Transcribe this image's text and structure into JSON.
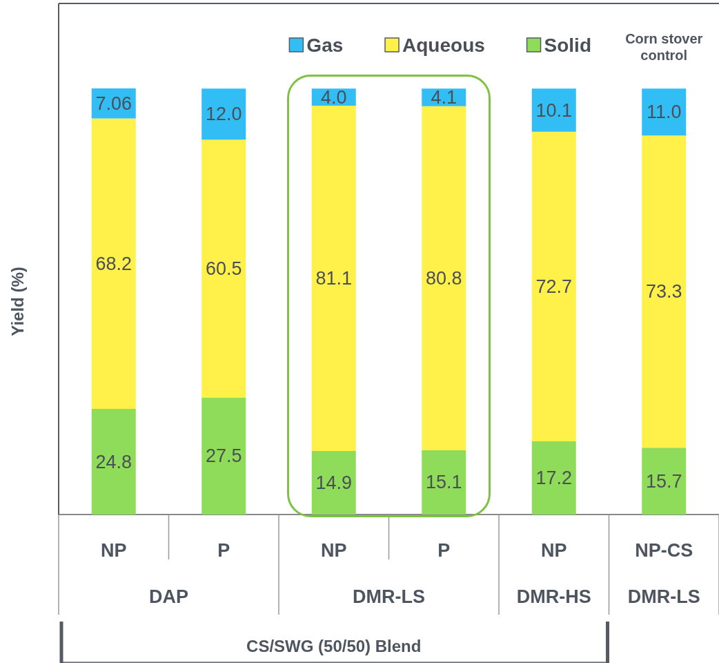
{
  "chart_data": {
    "type": "bar",
    "stacked": true,
    "ylabel": "Yield (%)",
    "categories": [
      "NP",
      "P",
      "NP",
      "P",
      "NP",
      "NP-CS"
    ],
    "series": [
      {
        "name": "Solid",
        "color": "#8fdc5a",
        "values": [
          24.8,
          27.5,
          14.9,
          15.1,
          17.2,
          15.7
        ],
        "value_labels": [
          "24.8",
          "27.5",
          "14.9",
          "15.1",
          "17.2",
          "15.7"
        ]
      },
      {
        "name": "Aqueous",
        "color": "#fff04a",
        "values": [
          68.2,
          60.5,
          81.1,
          80.8,
          72.7,
          73.3
        ],
        "value_labels": [
          "68.2",
          "60.5",
          "81.1",
          "80.8",
          "72.7",
          "73.3"
        ]
      },
      {
        "name": "Gas",
        "color": "#33bdf5",
        "values": [
          7.06,
          12.0,
          4.0,
          4.1,
          10.1,
          11.0
        ],
        "value_labels": [
          "7.06",
          "12.0",
          "4.0",
          "4.1",
          "10.1",
          "11.0"
        ]
      }
    ],
    "annotations": [
      "DAP",
      "DMR-LS",
      "DMR-HS",
      "DMR-LS",
      "CS/SWG (50/50) Blend",
      "Corn stover control"
    ],
    "legend": "top right",
    "grid": false
  }
}
